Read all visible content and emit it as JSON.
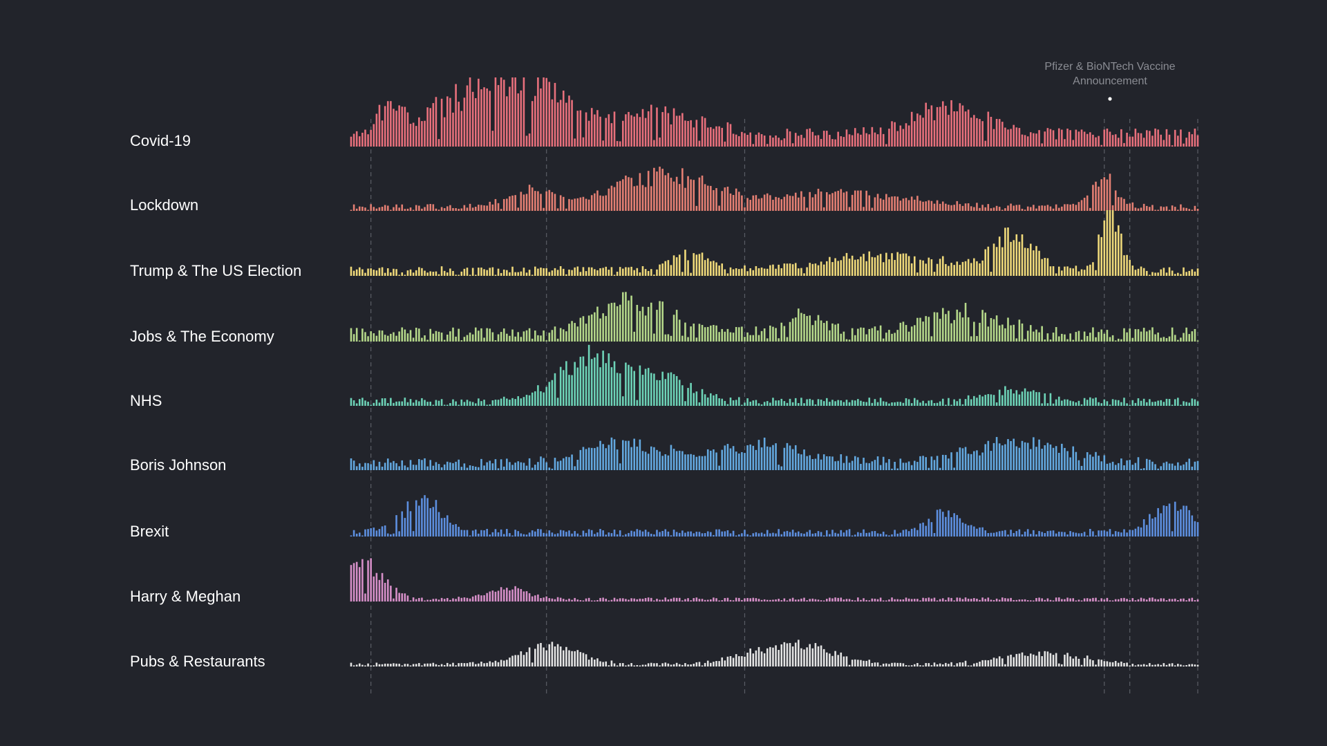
{
  "chart_data": {
    "type": "bar",
    "title": "",
    "annotation": {
      "text_line1": "Pfizer & BioNTech Vaccine",
      "text_line2": "Announcement",
      "x_index": 268
    },
    "n_points": 300,
    "reference_lines": [
      7,
      69,
      139,
      266,
      275,
      299
    ],
    "series": [
      {
        "name": "Covid-19",
        "color": "#e8707c",
        "level": 0.25,
        "noise": 0.35,
        "events": [
          [
            14,
            0.4,
            6
          ],
          [
            55,
            0.95,
            28
          ],
          [
            110,
            0.35,
            20
          ],
          [
            212,
            0.45,
            18
          ]
        ],
        "seed": 3
      },
      {
        "name": "Lockdown",
        "color": "#e47f73",
        "level": 0.08,
        "noise": 0.5,
        "events": [
          [
            63,
            0.3,
            10
          ],
          [
            110,
            0.55,
            25
          ],
          [
            175,
            0.25,
            30
          ],
          [
            266,
            0.5,
            6
          ]
        ],
        "seed": 7
      },
      {
        "name": "Trump & The US Election",
        "color": "#efd97a",
        "level": 0.12,
        "noise": 0.45,
        "events": [
          [
            120,
            0.25,
            10
          ],
          [
            190,
            0.25,
            30
          ],
          [
            234,
            0.6,
            10
          ],
          [
            268,
            1.0,
            5
          ]
        ],
        "seed": 11
      },
      {
        "name": "Jobs & The Economy",
        "color": "#b5d88a",
        "level": 0.15,
        "noise": 0.55,
        "events": [
          [
            100,
            0.55,
            20
          ],
          [
            160,
            0.3,
            10
          ],
          [
            215,
            0.35,
            20
          ]
        ],
        "seed": 17
      },
      {
        "name": "NHS",
        "color": "#6dd3b7",
        "level": 0.1,
        "noise": 0.45,
        "events": [
          [
            85,
            0.8,
            16
          ],
          [
            110,
            0.4,
            14
          ],
          [
            235,
            0.2,
            14
          ]
        ],
        "seed": 23
      },
      {
        "name": "Boris Johnson",
        "color": "#63a8df",
        "level": 0.12,
        "noise": 0.6,
        "events": [
          [
            95,
            0.35,
            18
          ],
          [
            145,
            0.3,
            25
          ],
          [
            235,
            0.35,
            25
          ]
        ],
        "seed": 29
      },
      {
        "name": "Brexit",
        "color": "#5d8fdf",
        "level": 0.08,
        "noise": 0.55,
        "events": [
          [
            25,
            0.55,
            10
          ],
          [
            210,
            0.35,
            8
          ],
          [
            290,
            0.45,
            10
          ]
        ],
        "seed": 31
      },
      {
        "name": "Harry & Meghan",
        "color": "#d68fc8",
        "level": 0.05,
        "noise": 0.45,
        "events": [
          [
            5,
            0.6,
            10
          ],
          [
            55,
            0.2,
            10
          ]
        ],
        "seed": 37
      },
      {
        "name": "Pubs & Restaurants",
        "color": "#e4e4e4",
        "level": 0.04,
        "noise": 0.55,
        "events": [
          [
            70,
            0.3,
            15
          ],
          [
            155,
            0.35,
            20
          ],
          [
            245,
            0.2,
            20
          ]
        ],
        "seed": 41
      }
    ]
  }
}
